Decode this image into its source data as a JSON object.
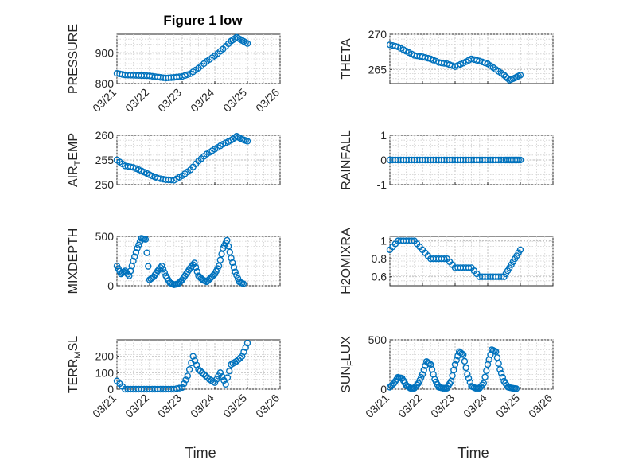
{
  "figure": {
    "title": "Figure 1 low",
    "marker_color": "#0072BD"
  },
  "chart_data": [
    {
      "type": "scatter",
      "ylabel": "PRESSURE",
      "ylim": [
        800,
        960
      ],
      "yticks": [
        800,
        900
      ],
      "xlim": [
        "03/21",
        "03/26"
      ],
      "xticks": [
        "03/21",
        "03/22",
        "03/23",
        "03/24",
        "03/25",
        "03/26"
      ],
      "x": [
        "03/21 00:00",
        "03/21 06:00",
        "03/21 12:00",
        "03/21 18:00",
        "03/22 00:00",
        "03/22 06:00",
        "03/22 12:00",
        "03/22 18:00",
        "03/23 00:00",
        "03/23 06:00",
        "03/23 12:00",
        "03/23 18:00",
        "03/24 00:00",
        "03/24 06:00",
        "03/24 12:00",
        "03/24 16:00",
        "03/24 20:00",
        "03/25 00:00"
      ],
      "y": [
        833,
        828,
        827,
        826,
        825,
        821,
        818,
        820,
        823,
        832,
        850,
        872,
        890,
        912,
        938,
        950,
        940,
        930
      ]
    },
    {
      "type": "scatter",
      "ylabel": "THETA",
      "ylim": [
        263,
        270
      ],
      "yticks": [
        265,
        270
      ],
      "xlim": [
        "03/21",
        "03/26"
      ],
      "x": [
        "03/21 00:00",
        "03/21 06:00",
        "03/21 12:00",
        "03/21 18:00",
        "03/22 00:00",
        "03/22 06:00",
        "03/22 12:00",
        "03/22 18:00",
        "03/23 00:00",
        "03/23 06:00",
        "03/23 12:00",
        "03/23 18:00",
        "03/24 00:00",
        "03/24 06:00",
        "03/24 12:00",
        "03/24 16:00",
        "03/24 20:00",
        "03/25 00:00"
      ],
      "y": [
        268.5,
        268.2,
        267.6,
        267.0,
        266.8,
        266.5,
        266.0,
        265.8,
        265.4,
        265.9,
        266.5,
        266.2,
        265.8,
        265.0,
        264.2,
        263.5,
        263.8,
        264.2
      ]
    },
    {
      "type": "scatter",
      "ylabel": "AIR_TEMP",
      "ylabel_main": "AIR",
      "ylabel_sub": "T",
      "ylabel_rest": "EMP",
      "ylim": [
        250,
        260
      ],
      "yticks": [
        250,
        255,
        260
      ],
      "xlim": [
        "03/21",
        "03/26"
      ],
      "x": [
        "03/21 00:00",
        "03/21 06:00",
        "03/21 12:00",
        "03/21 18:00",
        "03/22 00:00",
        "03/22 06:00",
        "03/22 12:00",
        "03/22 18:00",
        "03/23 00:00",
        "03/23 06:00",
        "03/23 12:00",
        "03/23 18:00",
        "03/24 00:00",
        "03/24 06:00",
        "03/24 12:00",
        "03/24 16:00",
        "03/24 20:00",
        "03/25 00:00"
      ],
      "y": [
        255,
        253.8,
        253.5,
        252.8,
        252.0,
        251.3,
        251.0,
        250.9,
        251.8,
        253.0,
        254.8,
        256.2,
        257.2,
        258.2,
        259.0,
        259.8,
        259.2,
        258.8
      ]
    },
    {
      "type": "scatter",
      "ylabel": "RAINFALL",
      "ylim": [
        -1,
        1
      ],
      "yticks": [
        -1,
        0,
        1
      ],
      "xlim": [
        "03/21",
        "03/26"
      ],
      "x": [
        "03/21 00:00",
        "03/21 06:00",
        "03/21 12:00",
        "03/21 18:00",
        "03/22 00:00",
        "03/22 06:00",
        "03/22 12:00",
        "03/22 18:00",
        "03/23 00:00",
        "03/23 06:00",
        "03/23 12:00",
        "03/23 18:00",
        "03/24 00:00",
        "03/24 06:00",
        "03/24 12:00",
        "03/24 16:00",
        "03/24 20:00",
        "03/25 00:00"
      ],
      "y": [
        0,
        0,
        0,
        0,
        0,
        0,
        0,
        0,
        0,
        0,
        0,
        0,
        0,
        0,
        0,
        0,
        0,
        0
      ]
    },
    {
      "type": "scatter",
      "ylabel": "MIXDEPTH",
      "ylim": [
        0,
        500
      ],
      "yticks": [
        0,
        500
      ],
      "xlim": [
        "03/21",
        "03/26"
      ],
      "x": [
        "03/21 00:00",
        "03/21 03:00",
        "03/21 06:00",
        "03/21 09:00",
        "03/21 12:00",
        "03/21 15:00",
        "03/21 18:00",
        "03/21 21:00",
        "03/22 00:00",
        "03/22 03:00",
        "03/22 06:00",
        "03/22 09:00",
        "03/22 12:00",
        "03/22 15:00",
        "03/22 18:00",
        "03/22 21:00",
        "03/23 00:00",
        "03/23 03:00",
        "03/23 06:00",
        "03/23 09:00",
        "03/23 12:00",
        "03/23 15:00",
        "03/23 18:00",
        "03/23 21:00",
        "03/24 00:00",
        "03/24 03:00",
        "03/24 06:00",
        "03/24 09:00",
        "03/24 12:00",
        "03/24 15:00",
        "03/24 18:00",
        "03/24 21:00"
      ],
      "y": [
        200,
        120,
        150,
        100,
        250,
        380,
        480,
        470,
        60,
        90,
        150,
        200,
        100,
        30,
        10,
        20,
        60,
        120,
        180,
        230,
        100,
        60,
        40,
        80,
        120,
        200,
        380,
        460,
        280,
        140,
        40,
        20
      ]
    },
    {
      "type": "scatter",
      "ylabel": "H2OMIXRA",
      "ylim": [
        0.5,
        1.05
      ],
      "yticks": [
        0.6,
        0.8,
        1
      ],
      "xlim": [
        "03/21",
        "03/26"
      ],
      "x": [
        "03/21 00:00",
        "03/21 06:00",
        "03/21 12:00",
        "03/21 18:00",
        "03/22 00:00",
        "03/22 06:00",
        "03/22 12:00",
        "03/22 18:00",
        "03/23 00:00",
        "03/23 06:00",
        "03/23 12:00",
        "03/23 18:00",
        "03/24 00:00",
        "03/24 06:00",
        "03/24 12:00",
        "03/24 16:00",
        "03/24 20:00",
        "03/25 00:00"
      ],
      "y": [
        0.9,
        1.0,
        1.0,
        1.0,
        0.9,
        0.8,
        0.8,
        0.8,
        0.7,
        0.7,
        0.7,
        0.6,
        0.6,
        0.6,
        0.6,
        0.7,
        0.8,
        0.9
      ]
    },
    {
      "type": "scatter",
      "ylabel": "TERR_MSL",
      "ylabel_main": "TERR",
      "ylabel_sub": "M",
      "ylabel_rest": "SL",
      "ylim": [
        0,
        300
      ],
      "yticks": [
        0,
        100,
        200
      ],
      "xlim": [
        "03/21",
        "03/26"
      ],
      "xticks": [
        "03/21",
        "03/22",
        "03/23",
        "03/24",
        "03/25",
        "03/26"
      ],
      "x": [
        "03/21 00:00",
        "03/21 06:00",
        "03/21 12:00",
        "03/21 18:00",
        "03/22 00:00",
        "03/22 06:00",
        "03/22 12:00",
        "03/22 18:00",
        "03/23 00:00",
        "03/23 04:00",
        "03/23 08:00",
        "03/23 12:00",
        "03/23 16:00",
        "03/23 20:00",
        "03/24 00:00",
        "03/24 04:00",
        "03/24 08:00",
        "03/24 12:00",
        "03/24 16:00",
        "03/24 20:00",
        "03/25 00:00"
      ],
      "y": [
        50,
        0,
        0,
        0,
        0,
        0,
        0,
        0,
        10,
        80,
        200,
        120,
        90,
        60,
        40,
        100,
        30,
        150,
        170,
        200,
        280
      ]
    },
    {
      "type": "scatter",
      "ylabel": "SUN_FLUX",
      "ylabel_main": "SUN",
      "ylabel_sub": "F",
      "ylabel_rest": "LUX",
      "ylim": [
        0,
        500
      ],
      "yticks": [
        0,
        500
      ],
      "xlim": [
        "03/21",
        "03/26"
      ],
      "xticks": [
        "03/21",
        "03/22",
        "03/23",
        "03/24",
        "03/25",
        "03/26"
      ],
      "x": [
        "03/21 00:00",
        "03/21 03:00",
        "03/21 06:00",
        "03/21 09:00",
        "03/21 12:00",
        "03/21 15:00",
        "03/21 18:00",
        "03/21 21:00",
        "03/22 00:00",
        "03/22 03:00",
        "03/22 06:00",
        "03/22 09:00",
        "03/22 12:00",
        "03/22 15:00",
        "03/22 18:00",
        "03/22 21:00",
        "03/23 00:00",
        "03/23 03:00",
        "03/23 06:00",
        "03/23 09:00",
        "03/23 12:00",
        "03/23 15:00",
        "03/23 18:00",
        "03/23 21:00",
        "03/24 00:00",
        "03/24 03:00",
        "03/24 06:00",
        "03/24 09:00",
        "03/24 12:00",
        "03/24 15:00",
        "03/24 18:00",
        "03/24 21:00"
      ],
      "y": [
        20,
        60,
        120,
        110,
        40,
        10,
        10,
        60,
        150,
        280,
        250,
        100,
        20,
        10,
        10,
        80,
        250,
        380,
        350,
        150,
        30,
        10,
        10,
        60,
        250,
        400,
        380,
        200,
        80,
        20,
        10,
        5
      ]
    }
  ],
  "xaxis": {
    "label": "Time"
  }
}
